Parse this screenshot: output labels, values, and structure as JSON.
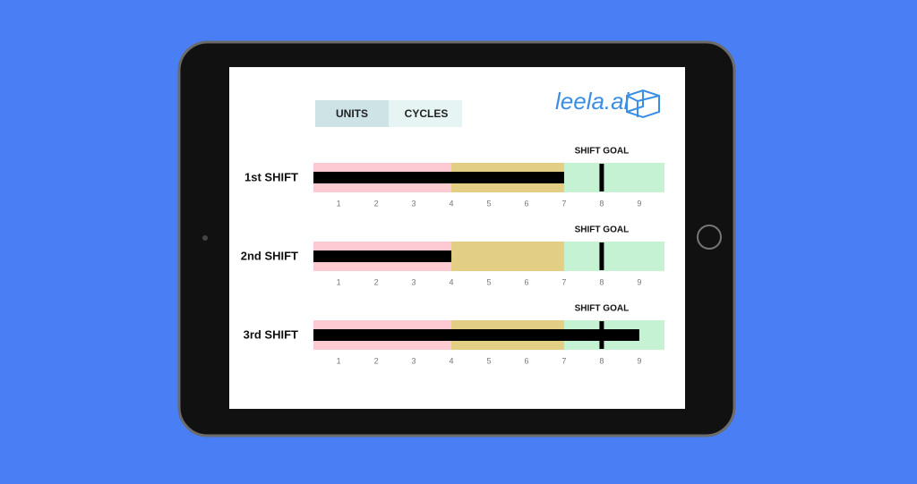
{
  "tabs": [
    "UNITS",
    "CYCLES"
  ],
  "logo": "leela.ai",
  "chart_data": [
    {
      "type": "bullet",
      "title": "1st SHIFT",
      "value": 7,
      "color": "#000000",
      "target": 8,
      "target_label": "SHIFT GOAL",
      "ranges": [
        4,
        7,
        9.67
      ],
      "range_colors": [
        "#fccad0",
        "#e3cf83",
        "#c6f2d4"
      ],
      "xlim": [
        0.33,
        9.67
      ],
      "xticks": [
        1,
        2,
        3,
        4,
        5,
        6,
        7,
        8,
        9
      ]
    },
    {
      "type": "bullet",
      "title": "2nd SHIFT",
      "value": 4,
      "color": "#000000",
      "target": 8,
      "target_label": "SHIFT GOAL",
      "ranges": [
        4,
        7,
        9.67
      ],
      "range_colors": [
        "#fccad0",
        "#e3cf83",
        "#c6f2d4"
      ],
      "xlim": [
        0.33,
        9.67
      ],
      "xticks": [
        1,
        2,
        3,
        4,
        5,
        6,
        7,
        8,
        9
      ]
    },
    {
      "type": "bullet",
      "title": "3rd SHIFT",
      "value": 9,
      "color": "#000000",
      "target": 8,
      "target_label": "SHIFT GOAL",
      "ranges": [
        4,
        7,
        9.67
      ],
      "range_colors": [
        "#fccad0",
        "#e3cf83",
        "#c6f2d4"
      ],
      "xlim": [
        0.33,
        9.67
      ],
      "xticks": [
        1,
        2,
        3,
        4,
        5,
        6,
        7,
        8,
        9
      ]
    }
  ]
}
